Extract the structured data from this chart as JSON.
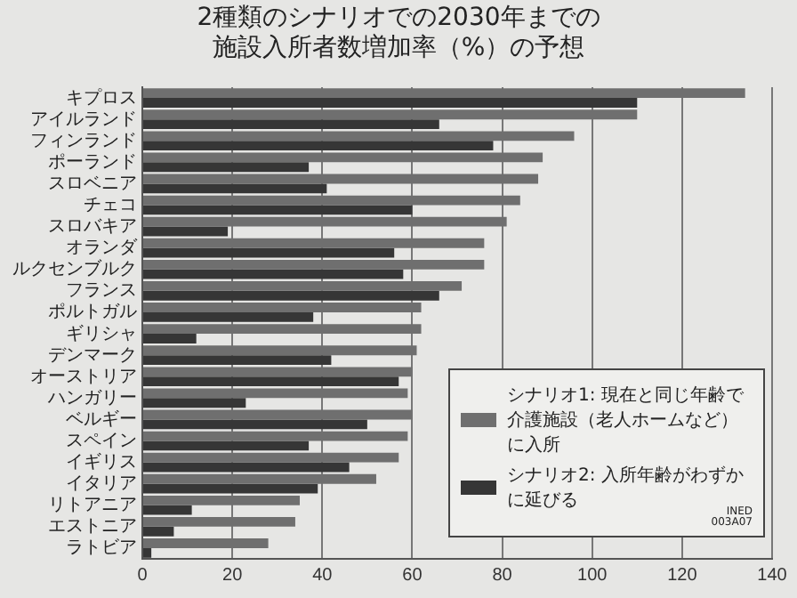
{
  "chart_data": {
    "type": "bar",
    "orientation": "horizontal",
    "title": "2種類のシナリオでの2030年までの施設入所者数増加率（%）の予想",
    "categories": [
      "キプロス",
      "アイルランド",
      "フィンランド",
      "ポーランド",
      "スロベニア",
      "チェコ",
      "スロバキア",
      "オランダ",
      "ルクセンブルク",
      "フランス",
      "ポルトガル",
      "ギリシャ",
      "デンマーク",
      "オーストリア",
      "ハンガリー",
      "ベルギー",
      "スペイン",
      "イギリス",
      "イタリア",
      "リトアニア",
      "エストニア",
      "ラトビア"
    ],
    "series": [
      {
        "name": "シナリオ1:  現在と同じ年齢で介護施設（老人ホームなど）に入所",
        "color": "#6f6f6f",
        "values": [
          134,
          110,
          96,
          89,
          88,
          84,
          81,
          76,
          76,
          71,
          62,
          62,
          61,
          60,
          59,
          60,
          59,
          57,
          52,
          35,
          34,
          28
        ]
      },
      {
        "name": "シナリオ2:  入所年齢がわずかに延びる",
        "color": "#363636",
        "values": [
          110,
          66,
          78,
          37,
          41,
          60,
          19,
          56,
          58,
          66,
          38,
          12,
          42,
          57,
          23,
          50,
          37,
          46,
          39,
          11,
          7,
          2
        ]
      }
    ],
    "xlim": [
      0,
      140
    ],
    "xticks": [
      0,
      20,
      40,
      60,
      80,
      100,
      120,
      140
    ],
    "grid": "x",
    "legend": "bottom right",
    "annotations": [
      "INED\n003A07"
    ]
  }
}
